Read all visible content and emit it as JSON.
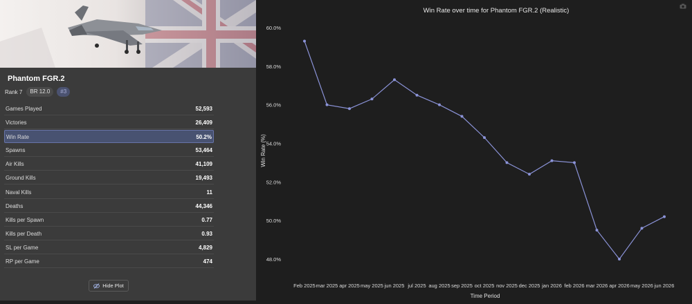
{
  "vehicle": {
    "name": "Phantom FGR.2",
    "rank": "Rank 7",
    "br": "BR 12.0",
    "tag": "#3"
  },
  "colors": {
    "accent": "#6874a8",
    "line": "#8b93d8",
    "panel": "#3b3b3b",
    "plot_bg": "#1e1e1e"
  },
  "stats": [
    {
      "label": "Games Played",
      "value": "52,593"
    },
    {
      "label": "Victories",
      "value": "26,409"
    },
    {
      "label": "Win Rate",
      "value": "50.2%",
      "active": true
    },
    {
      "label": "Spawns",
      "value": "53,464"
    },
    {
      "label": "Air Kills",
      "value": "41,109"
    },
    {
      "label": "Ground Kills",
      "value": "19,493"
    },
    {
      "label": "Naval Kills",
      "value": "11"
    },
    {
      "label": "Deaths",
      "value": "44,346"
    },
    {
      "label": "Kills per Spawn",
      "value": "0.77"
    },
    {
      "label": "Kills per Death",
      "value": "0.93"
    },
    {
      "label": "SL per Game",
      "value": "4,829"
    },
    {
      "label": "RP per Game",
      "value": "474"
    }
  ],
  "hide_plot_label": "Hide Plot",
  "icons": {
    "toggle": "eye-slash-icon",
    "camera": "camera-icon"
  },
  "chart_data": {
    "type": "line",
    "title": "Win Rate over time for Phantom FGR.2 (Realistic)",
    "xlabel": "Time Period",
    "ylabel": "Win Rate (%)",
    "categories": [
      "Feb 2025",
      "mar 2025",
      "apr 2025",
      "may 2025",
      "jun 2025",
      "jul 2025",
      "aug 2025",
      "sep 2025",
      "oct 2025",
      "nov 2025",
      "dec 2025",
      "jan 2026",
      "feb 2026",
      "mar 2026",
      "apr 2026",
      "may 2026",
      "jun 2026"
    ],
    "series": [
      {
        "values": [
          59.3,
          56.0,
          55.8,
          56.3,
          57.3,
          56.5,
          56.0,
          55.4,
          54.3,
          53.0,
          52.4,
          53.1,
          53.0,
          49.5,
          48.0,
          49.6,
          50.2
        ]
      }
    ],
    "yticks": [
      "60.0%",
      "58.0%",
      "56.0%",
      "54.0%",
      "52.0%",
      "50.0%",
      "48.0%"
    ],
    "ytick_values": [
      60,
      58,
      56,
      54,
      52,
      50,
      48
    ],
    "ylim": [
      47.5,
      60.5
    ],
    "grid": false,
    "legend": "none"
  }
}
